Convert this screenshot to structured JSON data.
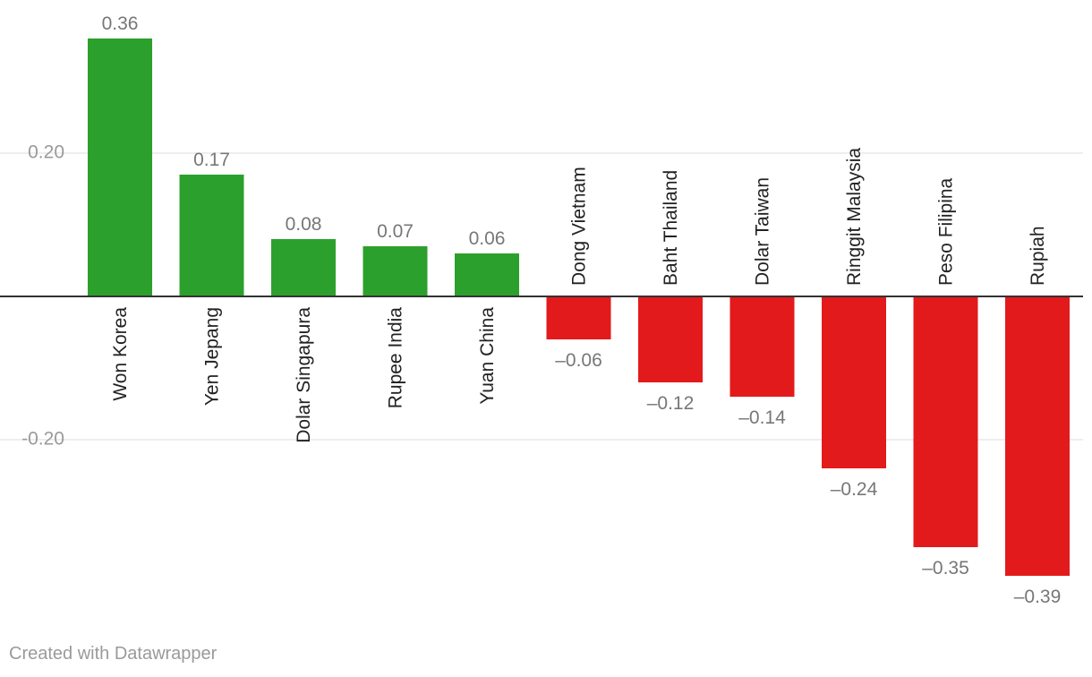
{
  "chart_data": {
    "type": "bar",
    "categories": [
      "Won Korea",
      "Yen Jepang",
      "Dolar Singapura",
      "Rupee India",
      "Yuan China",
      "Dong Vietnam",
      "Baht Thailand",
      "Dolar Taiwan",
      "Ringgit Malaysia",
      "Peso Filipina",
      "Rupiah"
    ],
    "values": [
      0.36,
      0.17,
      0.08,
      0.07,
      0.06,
      -0.06,
      -0.12,
      -0.14,
      -0.24,
      -0.35,
      -0.39
    ],
    "data_labels": [
      "0.36",
      "0.17",
      "0.08",
      "0.07",
      "0.06",
      "–0.06",
      "–0.12",
      "–0.14",
      "–0.24",
      "–0.35",
      "–0.39"
    ],
    "y_ticks": [
      0.2,
      -0.2
    ],
    "y_tick_labels": [
      "0.20",
      "-0.20"
    ],
    "ylim": [
      -0.39,
      0.36
    ],
    "grid": true,
    "colors": {
      "positive": "#2ca02c",
      "negative": "#e31a1c"
    }
  },
  "footer": {
    "credit": "Created with Datawrapper"
  }
}
